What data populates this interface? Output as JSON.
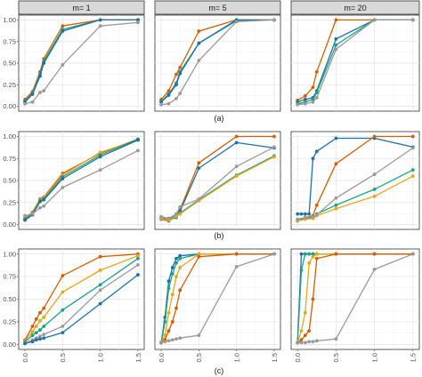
{
  "chart_data": {
    "type": "line",
    "facet_columns": [
      "m= 1",
      "m= 5",
      "m= 20"
    ],
    "row_labels": [
      "(a)",
      "(b)",
      "(c)"
    ],
    "x_ticks": [
      "0.0",
      "0.5",
      "1.0",
      "1.5"
    ],
    "y_ticks": [
      "0.00",
      "0.25",
      "0.50",
      "0.75",
      "1.00"
    ],
    "xlim": [
      0,
      1.5
    ],
    "ylim": [
      0,
      1
    ],
    "grid": true,
    "colors": {
      "orange": "#D55E00",
      "yellow": "#E6A61A",
      "green": "#1AA383",
      "blue": "#1F6FA8",
      "gray": "#9A9A9A"
    },
    "panels": [
      {
        "row": 0,
        "col": 0,
        "series": [
          {
            "color": "orange",
            "x": [
              0,
              0.1,
              0.2,
              0.25,
              0.5,
              1.0,
              1.5
            ],
            "y": [
              0.08,
              0.17,
              0.4,
              0.55,
              0.93,
              1.0,
              1.0
            ]
          },
          {
            "color": "green",
            "x": [
              0,
              0.1,
              0.2,
              0.25,
              0.5,
              1.0,
              1.5
            ],
            "y": [
              0.06,
              0.15,
              0.38,
              0.52,
              0.89,
              1.0,
              1.0
            ]
          },
          {
            "color": "blue",
            "x": [
              0,
              0.1,
              0.2,
              0.25,
              0.5,
              1.0,
              1.5
            ],
            "y": [
              0.05,
              0.14,
              0.35,
              0.5,
              0.87,
              1.0,
              1.0
            ]
          },
          {
            "color": "gray",
            "x": [
              0,
              0.1,
              0.2,
              0.25,
              0.5,
              1.0,
              1.5
            ],
            "y": [
              0.03,
              0.05,
              0.16,
              0.18,
              0.48,
              0.93,
              0.97
            ]
          }
        ]
      },
      {
        "row": 0,
        "col": 1,
        "series": [
          {
            "color": "orange",
            "x": [
              0,
              0.1,
              0.2,
              0.25,
              0.5,
              1.0,
              1.5
            ],
            "y": [
              0.08,
              0.18,
              0.37,
              0.45,
              0.87,
              1.0,
              1.0
            ]
          },
          {
            "color": "green",
            "x": [
              0,
              0.1,
              0.2,
              0.25,
              0.5,
              1.0,
              1.5
            ],
            "y": [
              0.06,
              0.14,
              0.27,
              0.4,
              0.73,
              0.99,
              1.0
            ]
          },
          {
            "color": "blue",
            "x": [
              0,
              0.1,
              0.2,
              0.25,
              0.5,
              1.0,
              1.5
            ],
            "y": [
              0.05,
              0.13,
              0.25,
              0.38,
              0.73,
              1.0,
              1.0
            ]
          },
          {
            "color": "gray",
            "x": [
              0,
              0.1,
              0.2,
              0.25,
              0.5,
              1.0,
              1.5
            ],
            "y": [
              0.02,
              0.03,
              0.09,
              0.15,
              0.53,
              0.98,
              1.0
            ]
          }
        ]
      },
      {
        "row": 0,
        "col": 2,
        "series": [
          {
            "color": "orange",
            "x": [
              0,
              0.1,
              0.2,
              0.25,
              0.5,
              1.0,
              1.5
            ],
            "y": [
              0.07,
              0.12,
              0.22,
              0.4,
              1.0,
              1.0,
              1.0
            ]
          },
          {
            "color": "blue",
            "x": [
              0,
              0.1,
              0.2,
              0.25,
              0.5,
              1.0,
              1.5
            ],
            "y": [
              0.05,
              0.08,
              0.1,
              0.18,
              0.78,
              1.0,
              1.0
            ]
          },
          {
            "color": "green",
            "x": [
              0,
              0.1,
              0.2,
              0.25,
              0.5,
              1.0,
              1.5
            ],
            "y": [
              0.03,
              0.05,
              0.08,
              0.16,
              0.71,
              1.0,
              1.0
            ]
          },
          {
            "color": "gray",
            "x": [
              0,
              0.1,
              0.2,
              0.25,
              0.5,
              1.0,
              1.5
            ],
            "y": [
              0.02,
              0.03,
              0.05,
              0.1,
              0.66,
              1.0,
              1.0
            ]
          }
        ]
      },
      {
        "row": 1,
        "col": 0,
        "series": [
          {
            "color": "orange",
            "x": [
              0,
              0.1,
              0.2,
              0.25,
              0.5,
              1.0,
              1.5
            ],
            "y": [
              0.07,
              0.14,
              0.29,
              0.31,
              0.58,
              0.81,
              0.97
            ]
          },
          {
            "color": "yellow",
            "x": [
              0,
              0.1,
              0.2,
              0.25,
              0.5,
              1.0,
              1.5
            ],
            "y": [
              0.06,
              0.13,
              0.28,
              0.3,
              0.56,
              0.82,
              0.96
            ]
          },
          {
            "color": "green",
            "x": [
              0,
              0.1,
              0.2,
              0.25,
              0.5,
              1.0,
              1.5
            ],
            "y": [
              0.06,
              0.12,
              0.27,
              0.29,
              0.54,
              0.79,
              0.97
            ]
          },
          {
            "color": "blue",
            "x": [
              0,
              0.1,
              0.2,
              0.25,
              0.5,
              1.0,
              1.5
            ],
            "y": [
              0.05,
              0.11,
              0.26,
              0.28,
              0.52,
              0.77,
              0.96
            ]
          },
          {
            "color": "gray",
            "x": [
              0,
              0.1,
              0.2,
              0.25,
              0.5,
              1.0,
              1.5
            ],
            "y": [
              0.1,
              0.12,
              0.19,
              0.21,
              0.42,
              0.62,
              0.84
            ]
          }
        ]
      },
      {
        "row": 1,
        "col": 1,
        "series": [
          {
            "color": "orange",
            "x": [
              0,
              0.1,
              0.2,
              0.25,
              0.5,
              1.0,
              1.5
            ],
            "y": [
              0.06,
              0.04,
              0.1,
              0.17,
              0.7,
              1.0,
              1.0
            ]
          },
          {
            "color": "blue",
            "x": [
              0,
              0.1,
              0.2,
              0.25,
              0.5,
              1.0,
              1.5
            ],
            "y": [
              0.07,
              0.05,
              0.08,
              0.15,
              0.64,
              0.93,
              0.87
            ]
          },
          {
            "color": "green",
            "x": [
              0,
              0.1,
              0.2,
              0.25,
              0.5,
              1.0,
              1.5
            ],
            "y": [
              0.08,
              0.06,
              0.1,
              0.13,
              0.28,
              0.56,
              0.78
            ]
          },
          {
            "color": "yellow",
            "x": [
              0,
              0.1,
              0.2,
              0.25,
              0.5,
              1.0,
              1.5
            ],
            "y": [
              0.07,
              0.05,
              0.09,
              0.12,
              0.27,
              0.55,
              0.77
            ]
          },
          {
            "color": "gray",
            "x": [
              0,
              0.1,
              0.2,
              0.25,
              0.5,
              1.0,
              1.5
            ],
            "y": [
              0.09,
              0.07,
              0.12,
              0.2,
              0.29,
              0.66,
              0.88
            ]
          }
        ]
      },
      {
        "row": 1,
        "col": 2,
        "series": [
          {
            "color": "blue",
            "x": [
              0,
              0.05,
              0.1,
              0.15,
              0.2,
              0.25,
              0.5,
              1.0,
              1.5
            ],
            "y": [
              0.12,
              0.12,
              0.12,
              0.12,
              0.75,
              0.83,
              0.98,
              0.98,
              0.88
            ]
          },
          {
            "color": "orange",
            "x": [
              0,
              0.1,
              0.2,
              0.25,
              0.5,
              1.0,
              1.5
            ],
            "y": [
              0.04,
              0.08,
              0.1,
              0.22,
              0.69,
              1.0,
              1.0
            ]
          },
          {
            "color": "green",
            "x": [
              0,
              0.1,
              0.2,
              0.25,
              0.5,
              1.0,
              1.5
            ],
            "y": [
              0.05,
              0.07,
              0.08,
              0.12,
              0.22,
              0.4,
              0.62
            ]
          },
          {
            "color": "yellow",
            "x": [
              0,
              0.1,
              0.2,
              0.25,
              0.5,
              1.0,
              1.5
            ],
            "y": [
              0.04,
              0.06,
              0.07,
              0.1,
              0.18,
              0.32,
              0.55
            ]
          },
          {
            "color": "gray",
            "x": [
              0,
              0.1,
              0.2,
              0.25,
              0.5,
              1.0,
              1.5
            ],
            "y": [
              0.06,
              0.08,
              0.09,
              0.11,
              0.3,
              0.57,
              0.87
            ]
          }
        ]
      },
      {
        "row": 2,
        "col": 0,
        "series": [
          {
            "color": "orange",
            "x": [
              0,
              0.1,
              0.15,
              0.2,
              0.25,
              0.5,
              1.0,
              1.5
            ],
            "y": [
              0.05,
              0.2,
              0.28,
              0.35,
              0.4,
              0.76,
              0.97,
              1.0
            ]
          },
          {
            "color": "yellow",
            "x": [
              0,
              0.1,
              0.15,
              0.2,
              0.25,
              0.5,
              1.0,
              1.5
            ],
            "y": [
              0.04,
              0.14,
              0.2,
              0.26,
              0.3,
              0.58,
              0.82,
              0.98
            ]
          },
          {
            "color": "green",
            "x": [
              0,
              0.1,
              0.15,
              0.2,
              0.25,
              0.5,
              1.0,
              1.5
            ],
            "y": [
              0.03,
              0.1,
              0.13,
              0.16,
              0.2,
              0.38,
              0.66,
              0.95
            ]
          },
          {
            "color": "gray",
            "x": [
              0,
              0.1,
              0.15,
              0.2,
              0.25,
              0.5,
              1.0,
              1.5
            ],
            "y": [
              0.02,
              0.05,
              0.07,
              0.09,
              0.11,
              0.2,
              0.6,
              0.88
            ]
          },
          {
            "color": "blue",
            "x": [
              0,
              0.1,
              0.15,
              0.2,
              0.25,
              0.5,
              1.0,
              1.5
            ],
            "y": [
              0.01,
              0.03,
              0.05,
              0.06,
              0.07,
              0.13,
              0.45,
              0.77
            ]
          }
        ]
      },
      {
        "row": 2,
        "col": 1,
        "series": [
          {
            "color": "blue",
            "x": [
              0,
              0.05,
              0.1,
              0.15,
              0.2,
              0.25,
              0.5,
              1.0,
              1.5
            ],
            "y": [
              0.02,
              0.3,
              0.7,
              0.85,
              0.95,
              0.98,
              1.0,
              1.0,
              1.0
            ]
          },
          {
            "color": "green",
            "x": [
              0,
              0.05,
              0.1,
              0.15,
              0.2,
              0.25,
              0.5,
              1.0,
              1.5
            ],
            "y": [
              0.02,
              0.25,
              0.62,
              0.78,
              0.9,
              0.95,
              1.0,
              1.0,
              1.0
            ]
          },
          {
            "color": "yellow",
            "x": [
              0,
              0.05,
              0.1,
              0.15,
              0.2,
              0.25,
              0.5,
              1.0,
              1.5
            ],
            "y": [
              0.02,
              0.1,
              0.35,
              0.55,
              0.75,
              0.85,
              1.0,
              1.0,
              1.0
            ]
          },
          {
            "color": "orange",
            "x": [
              0,
              0.05,
              0.1,
              0.15,
              0.2,
              0.25,
              0.5,
              1.0,
              1.5
            ],
            "y": [
              0.02,
              0.05,
              0.15,
              0.25,
              0.4,
              0.6,
              0.97,
              1.0,
              1.0
            ]
          },
          {
            "color": "gray",
            "x": [
              0,
              0.05,
              0.1,
              0.15,
              0.2,
              0.25,
              0.5,
              1.0,
              1.5
            ],
            "y": [
              0.02,
              0.03,
              0.04,
              0.05,
              0.06,
              0.07,
              0.1,
              0.86,
              1.0
            ]
          }
        ]
      },
      {
        "row": 2,
        "col": 2,
        "series": [
          {
            "color": "blue",
            "x": [
              0,
              0.05,
              0.1,
              0.15,
              0.2,
              0.25,
              0.5,
              1.0,
              1.5
            ],
            "y": [
              0.02,
              1.0,
              1.0,
              1.0,
              1.0,
              1.0,
              1.0,
              1.0,
              1.0
            ]
          },
          {
            "color": "green",
            "x": [
              0,
              0.05,
              0.1,
              0.15,
              0.2,
              0.25,
              0.5,
              1.0,
              1.5
            ],
            "y": [
              0.02,
              0.82,
              1.0,
              1.0,
              1.0,
              1.0,
              1.0,
              1.0,
              1.0
            ]
          },
          {
            "color": "yellow",
            "x": [
              0,
              0.05,
              0.1,
              0.15,
              0.2,
              0.25,
              0.5,
              1.0,
              1.5
            ],
            "y": [
              0.02,
              0.15,
              0.35,
              0.9,
              0.97,
              1.0,
              1.0,
              1.0,
              1.0
            ]
          },
          {
            "color": "orange",
            "x": [
              0,
              0.05,
              0.1,
              0.15,
              0.2,
              0.25,
              0.5,
              1.0,
              1.5
            ],
            "y": [
              0.02,
              0.05,
              0.1,
              0.15,
              0.5,
              0.95,
              1.0,
              1.0,
              1.0
            ]
          },
          {
            "color": "gray",
            "x": [
              0,
              0.05,
              0.1,
              0.15,
              0.2,
              0.25,
              0.5,
              1.0,
              1.5
            ],
            "y": [
              0.02,
              0.02,
              0.02,
              0.03,
              0.03,
              0.04,
              0.06,
              0.83,
              1.0
            ]
          }
        ]
      }
    ]
  }
}
